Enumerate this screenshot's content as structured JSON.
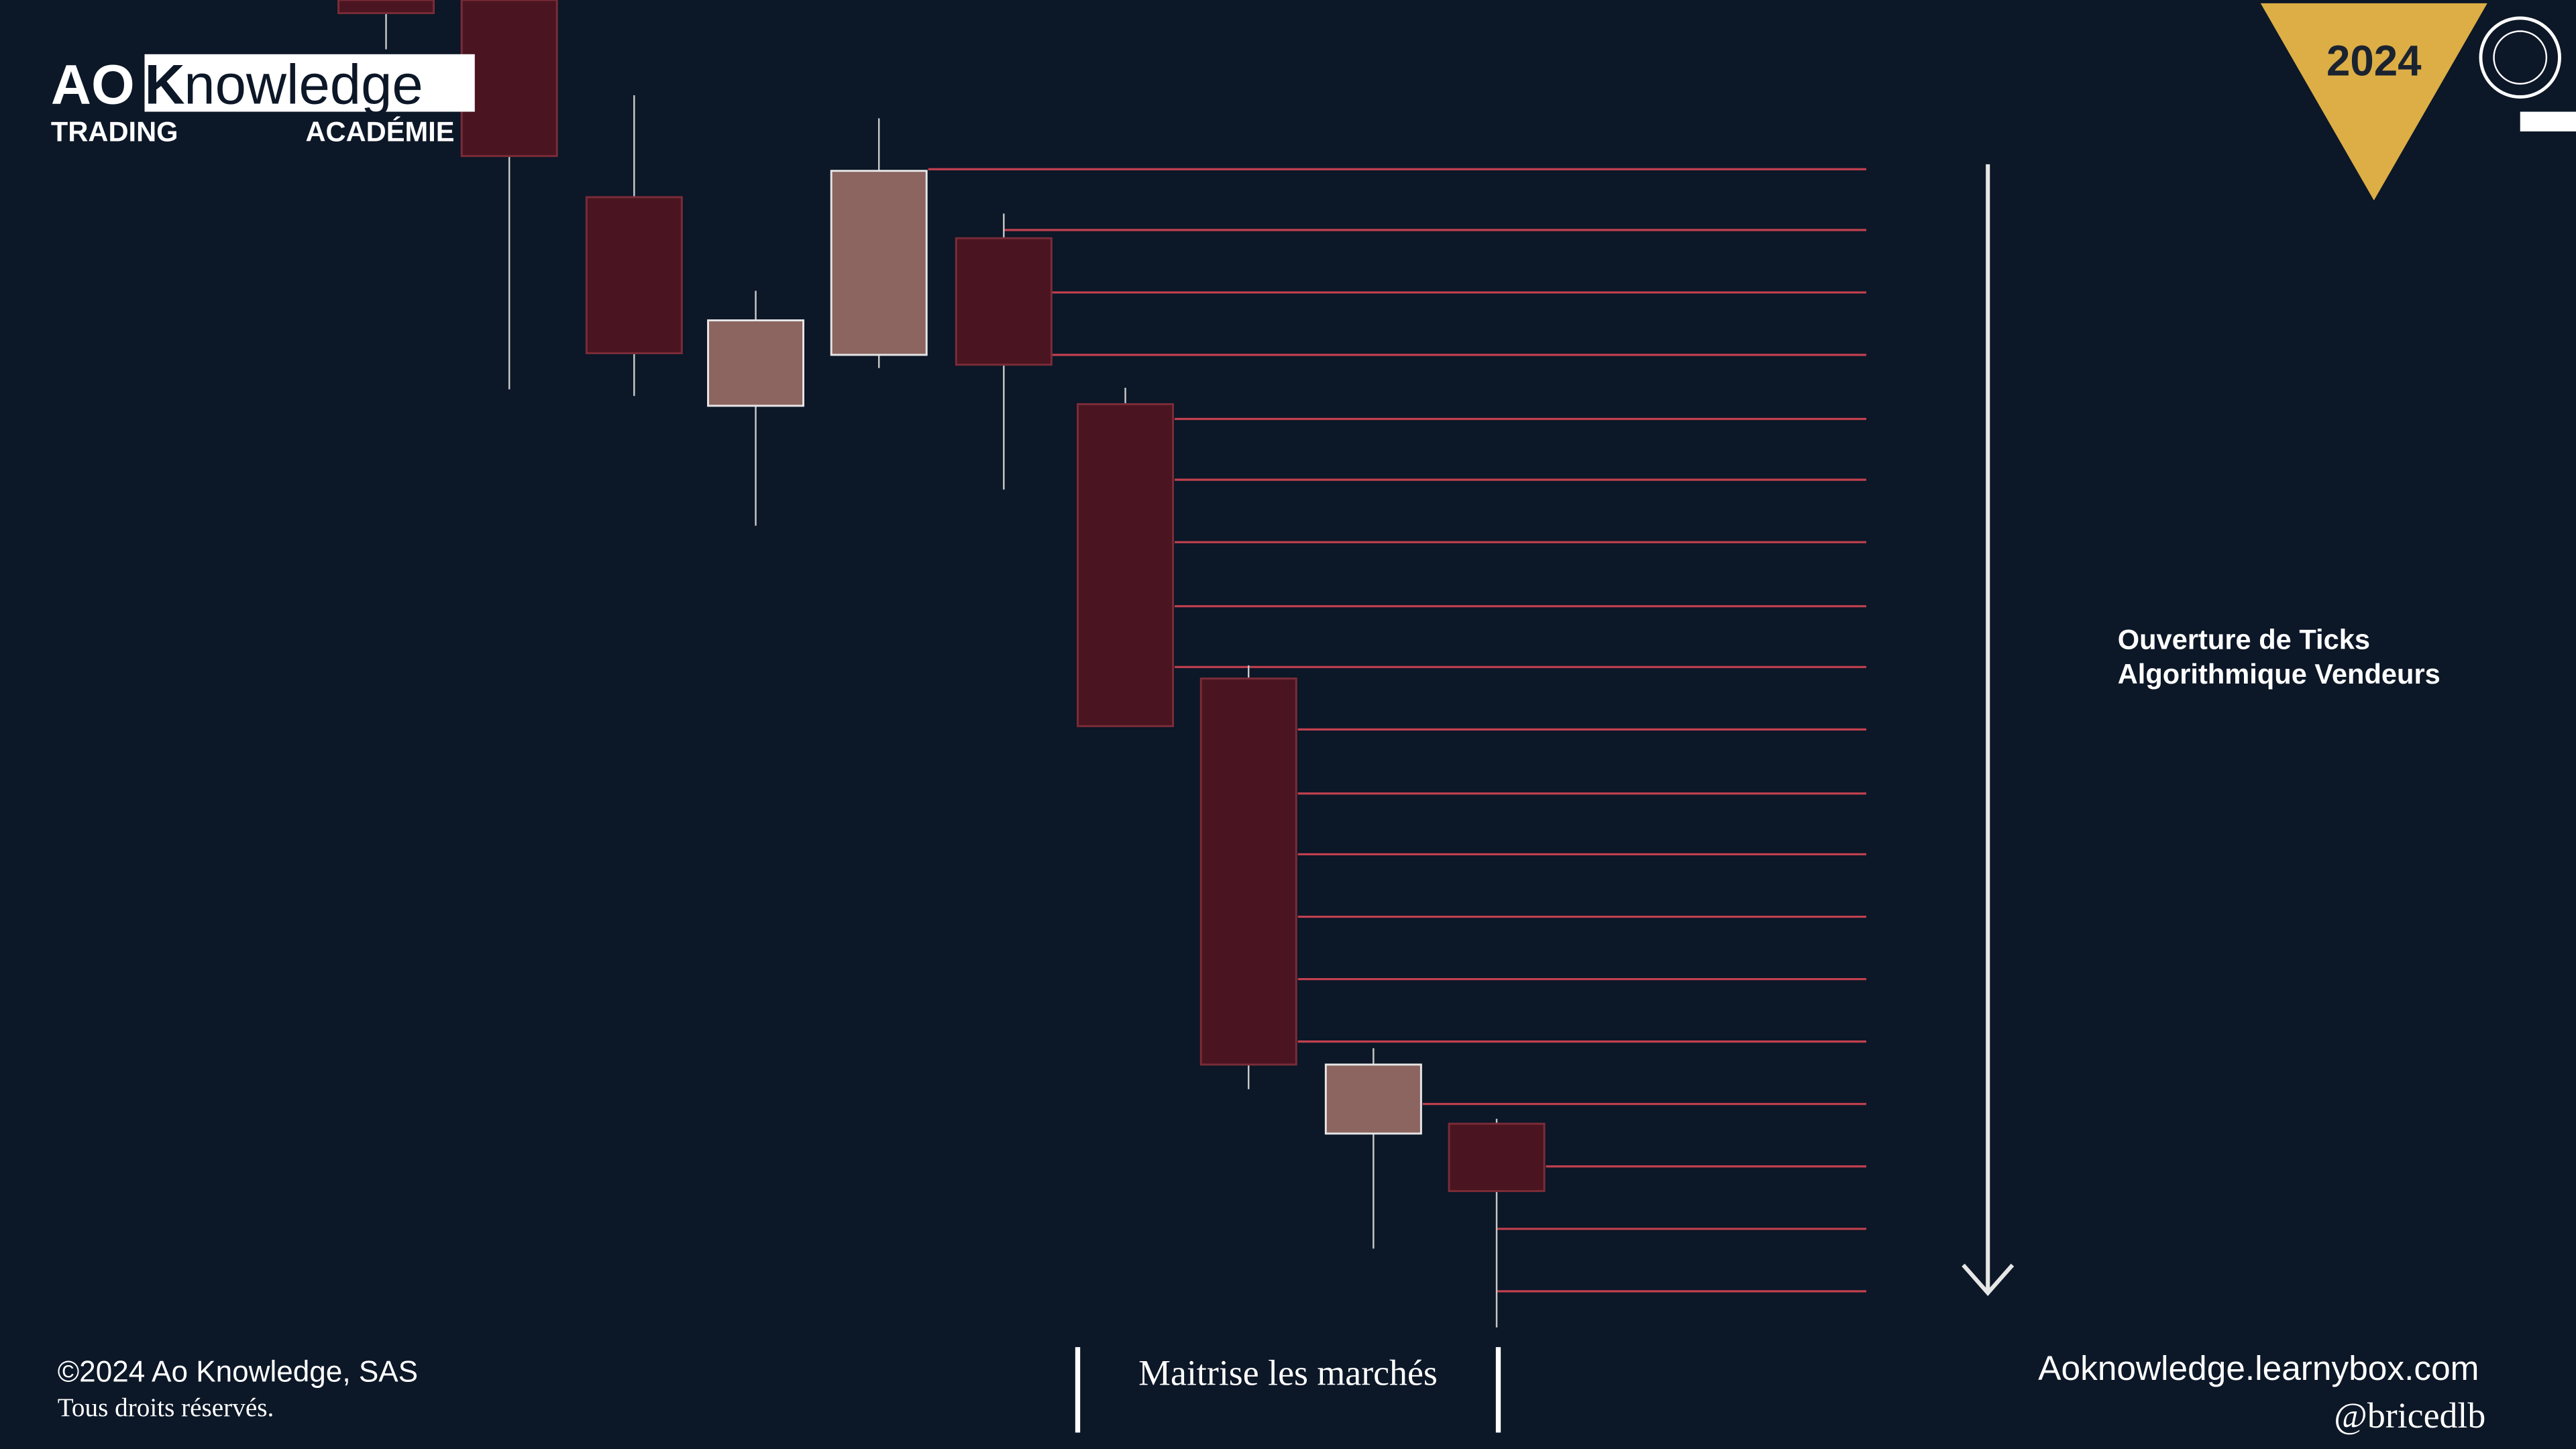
{
  "logo": {
    "brand_a": "AO",
    "brand_b": "K",
    "brand_c": "nowledge",
    "line_left": "TRADING",
    "line_right": "ACADÉMIE"
  },
  "badge": "2024",
  "annotation": [
    "Ouverture de Ticks",
    "Algorithmique Vendeurs"
  ],
  "chart_data": {
    "type": "candlestick",
    "ylim": [
      0,
      882
    ],
    "up_color": "#8c6560",
    "down_color": "#4a1520",
    "open": [
      882,
      882,
      762,
      635,
      666,
      737,
      636,
      469,
      192,
      198
    ],
    "high": [
      882,
      882,
      824,
      705,
      810,
      752,
      646,
      477,
      244,
      201
    ],
    "low": [
      852,
      645,
      641,
      562,
      658,
      584,
      440,
      219,
      122,
      74
    ],
    "close": [
      874,
      787,
      667,
      687,
      778,
      660,
      440,
      234,
      234,
      157
    ]
  },
  "footer": {
    "copyright": "©2024 Ao Knowledge, SAS",
    "rights": "Tous droits réservés.",
    "tagline": "Maitrise les marchés",
    "website": "Aoknowledge.learnybox.com",
    "handle": "@bricedlb"
  }
}
